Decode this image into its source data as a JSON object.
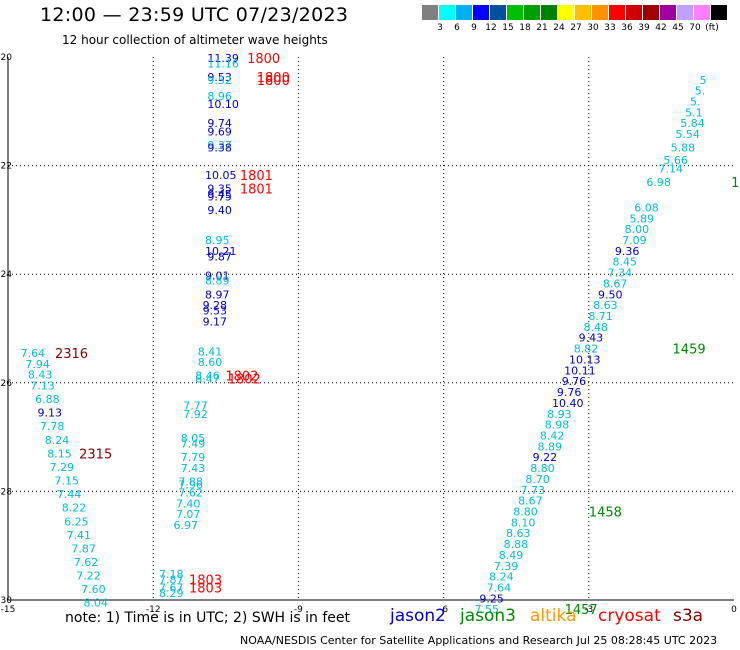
{
  "header": {
    "title": "12:00 — 23:59 UTC 07/23/2023",
    "subtitle": "12 hour collection of altimeter wave heights"
  },
  "legend": {
    "colors": [
      "#808080",
      "#00ffff",
      "#00b0f0",
      "#0000ff",
      "#0050a0",
      "#00c000",
      "#00a000",
      "#008000",
      "#ffff00",
      "#ffc000",
      "#ff9000",
      "#ff0000",
      "#d00000",
      "#a00000",
      "#a000a0",
      "#c0a0ff",
      "#ff80ff",
      "#000000"
    ],
    "labels": [
      "3",
      "6",
      "9",
      "12",
      "15",
      "18",
      "21",
      "24",
      "27",
      "30",
      "33",
      "36",
      "39",
      "42",
      "45",
      "70",
      "(ft)"
    ]
  },
  "axes": {
    "lon_ticks": [
      "-15",
      "-12",
      "-9",
      "-6",
      "-3",
      "0"
    ],
    "lat_ticks": [
      "-20",
      "-22",
      "-24",
      "-26",
      "-28",
      "-30"
    ]
  },
  "footer": {
    "note": "note:  1) Time is in UTC;  2) SWH is in feet",
    "satellites": [
      {
        "name": "jason2",
        "color": "#0000cc"
      },
      {
        "name": "jason3",
        "color": "#008800"
      },
      {
        "name": "altika",
        "color": "#ff9900"
      },
      {
        "name": "cryosat",
        "color": "#ff0000"
      },
      {
        "name": "s3a",
        "color": "#880000"
      }
    ],
    "credit": "NOAA/NESDIS Center for Satellite Applications and Research   Jul 25 08:28:45 UTC 2023"
  },
  "chart_data": {
    "type": "scatter",
    "x_range": [
      -15,
      0
    ],
    "y_range": [
      -30,
      -20
    ],
    "grid": true,
    "points": [
      {
        "x": -10.88,
        "y": -20.02,
        "v": "11.39",
        "c": "#0000cc"
      },
      {
        "x": -10.88,
        "y": -20.12,
        "v": "11.16",
        "c": "#00bbdd"
      },
      {
        "x": -10.88,
        "y": -20.37,
        "v": "9.53",
        "c": "#0000cc"
      },
      {
        "x": -10.88,
        "y": -20.42,
        "v": "9.52",
        "c": "#00bbdd"
      },
      {
        "x": -10.88,
        "y": -20.72,
        "v": "8.96",
        "c": "#00bbdd"
      },
      {
        "x": -10.88,
        "y": -20.87,
        "v": "10.10",
        "c": "#0000cc"
      },
      {
        "x": -10.88,
        "y": -21.22,
        "v": "9.74",
        "c": "#0000cc"
      },
      {
        "x": -10.88,
        "y": -21.37,
        "v": "9.69",
        "c": "#0000cc"
      },
      {
        "x": -10.88,
        "y": -21.62,
        "v": "9.37",
        "c": "#00bbdd"
      },
      {
        "x": -10.88,
        "y": -21.67,
        "v": "9.38",
        "c": "#0000cc"
      },
      {
        "x": -10.93,
        "y": -22.17,
        "v": "10.05",
        "c": "#0000cc"
      },
      {
        "x": -10.88,
        "y": -22.42,
        "v": "9.35",
        "c": "#0000cc"
      },
      {
        "x": -10.88,
        "y": -22.52,
        "v": "9.45",
        "c": "#0000cc"
      },
      {
        "x": -10.88,
        "y": -22.57,
        "v": "9.75",
        "c": "#0000cc"
      },
      {
        "x": -10.88,
        "y": -22.82,
        "v": "9.40",
        "c": "#0000cc"
      },
      {
        "x": -10.93,
        "y": -23.37,
        "v": "8.95",
        "c": "#00bbdd"
      },
      {
        "x": -10.93,
        "y": -23.57,
        "v": "10.21",
        "c": "#0000cc"
      },
      {
        "x": -10.88,
        "y": -23.67,
        "v": "9.87",
        "c": "#0000cc"
      },
      {
        "x": -10.93,
        "y": -24.02,
        "v": "9.01",
        "c": "#0000cc"
      },
      {
        "x": -10.93,
        "y": -24.12,
        "v": "8.89",
        "c": "#00bbdd"
      },
      {
        "x": -10.93,
        "y": -24.37,
        "v": "8.97",
        "c": "#0000cc"
      },
      {
        "x": -10.98,
        "y": -24.57,
        "v": "9.28",
        "c": "#0000cc"
      },
      {
        "x": -10.98,
        "y": -24.67,
        "v": "9.53",
        "c": "#0000cc"
      },
      {
        "x": -10.98,
        "y": -24.87,
        "v": "9.17",
        "c": "#0000cc"
      },
      {
        "x": -11.08,
        "y": -25.42,
        "v": "8.41",
        "c": "#00bbdd"
      },
      {
        "x": -11.08,
        "y": -25.62,
        "v": "8.60",
        "c": "#00bbdd"
      },
      {
        "x": -11.13,
        "y": -25.87,
        "v": "8.46",
        "c": "#00bbdd"
      },
      {
        "x": -11.13,
        "y": -25.92,
        "v": "8.47",
        "c": "#00bbdd"
      },
      {
        "x": -11.38,
        "y": -26.42,
        "v": "7.77",
        "c": "#00bbdd"
      },
      {
        "x": -11.38,
        "y": -26.57,
        "v": "7.92",
        "c": "#00bbdd"
      },
      {
        "x": -11.43,
        "y": -27.02,
        "v": "8.05",
        "c": "#00bbdd"
      },
      {
        "x": -11.43,
        "y": -27.12,
        "v": "7.49",
        "c": "#00bbdd"
      },
      {
        "x": -11.43,
        "y": -27.37,
        "v": "7.79",
        "c": "#00bbdd"
      },
      {
        "x": -11.43,
        "y": -27.57,
        "v": "7.43",
        "c": "#00bbdd"
      },
      {
        "x": -11.48,
        "y": -27.82,
        "v": "7.88",
        "c": "#00bbdd"
      },
      {
        "x": -11.48,
        "y": -27.87,
        "v": "7.96",
        "c": "#00bbdd"
      },
      {
        "x": -11.48,
        "y": -28.02,
        "v": "7.62",
        "c": "#00bbdd"
      },
      {
        "x": -11.53,
        "y": -28.22,
        "v": "7.40",
        "c": "#00bbdd"
      },
      {
        "x": -11.53,
        "y": -28.42,
        "v": "7.07",
        "c": "#00bbdd"
      },
      {
        "x": -11.58,
        "y": -28.62,
        "v": "6.97",
        "c": "#00bbdd"
      },
      {
        "x": -11.88,
        "y": -29.52,
        "v": "7.18",
        "c": "#00bbdd"
      },
      {
        "x": -11.88,
        "y": -29.62,
        "v": "7.87",
        "c": "#00bbdd"
      },
      {
        "x": -11.88,
        "y": -29.77,
        "v": "7.67",
        "c": "#00bbdd"
      },
      {
        "x": -11.88,
        "y": -29.87,
        "v": "8.29",
        "c": "#00bbdd"
      },
      {
        "x": -14.74,
        "y": -25.45,
        "v": "7.64",
        "c": "#00bbdd"
      },
      {
        "x": -14.64,
        "y": -25.65,
        "v": "7.94",
        "c": "#00bbdd"
      },
      {
        "x": -14.59,
        "y": -25.85,
        "v": "8.43",
        "c": "#00bbdd"
      },
      {
        "x": -14.54,
        "y": -26.05,
        "v": "7.13",
        "c": "#00bbdd"
      },
      {
        "x": -14.44,
        "y": -26.3,
        "v": "6.88",
        "c": "#00bbdd"
      },
      {
        "x": -14.39,
        "y": -26.55,
        "v": "9.13",
        "c": "#0000cc"
      },
      {
        "x": -14.34,
        "y": -26.8,
        "v": "7.78",
        "c": "#00bbdd"
      },
      {
        "x": -14.24,
        "y": -27.05,
        "v": "8.24",
        "c": "#00bbdd"
      },
      {
        "x": -14.19,
        "y": -27.3,
        "v": "8.15",
        "c": "#00bbdd"
      },
      {
        "x": -14.14,
        "y": -27.55,
        "v": "7.29",
        "c": "#00bbdd"
      },
      {
        "x": -14.04,
        "y": -27.8,
        "v": "7.15",
        "c": "#00bbdd"
      },
      {
        "x": -13.99,
        "y": -28.05,
        "v": "7.44",
        "c": "#00bbdd"
      },
      {
        "x": -13.89,
        "y": -28.3,
        "v": "8.22",
        "c": "#00bbdd"
      },
      {
        "x": -13.84,
        "y": -28.55,
        "v": "6.25",
        "c": "#00bbdd"
      },
      {
        "x": -13.79,
        "y": -28.8,
        "v": "7.41",
        "c": "#00bbdd"
      },
      {
        "x": -13.69,
        "y": -29.05,
        "v": "7.87",
        "c": "#00bbdd"
      },
      {
        "x": -13.64,
        "y": -29.3,
        "v": "7.62",
        "c": "#00bbdd"
      },
      {
        "x": -13.59,
        "y": -29.55,
        "v": "7.22",
        "c": "#00bbdd"
      },
      {
        "x": -13.49,
        "y": -29.8,
        "v": "7.60",
        "c": "#00bbdd"
      },
      {
        "x": -13.44,
        "y": -30.05,
        "v": "8.04",
        "c": "#00bbdd"
      },
      {
        "x": -1.81,
        "y": -22.3,
        "v": "6.98",
        "c": "#00bbdd"
      },
      {
        "x": -1.56,
        "y": -22.05,
        "v": "7.14",
        "c": "#00bbdd"
      },
      {
        "x": -1.46,
        "y": -21.9,
        "v": "5.66",
        "c": "#00bbdd"
      },
      {
        "x": -1.31,
        "y": -21.67,
        "v": "5.88",
        "c": "#00bbdd"
      },
      {
        "x": -1.21,
        "y": -21.42,
        "v": "5.54",
        "c": "#00bbdd"
      },
      {
        "x": -1.11,
        "y": -21.22,
        "v": "5.84",
        "c": "#00bbdd"
      },
      {
        "x": -1.01,
        "y": -21.02,
        "v": "5.1",
        "c": "#00bbdd"
      },
      {
        "x": -0.91,
        "y": -20.82,
        "v": "5.",
        "c": "#00bbdd"
      },
      {
        "x": -0.81,
        "y": -20.62,
        "v": "5.",
        "c": "#00bbdd"
      },
      {
        "x": -0.71,
        "y": -20.42,
        "v": "5",
        "c": "#00bbdd"
      },
      {
        "x": -2.06,
        "y": -22.77,
        "v": "6.08",
        "c": "#00bbdd"
      },
      {
        "x": -2.16,
        "y": -22.97,
        "v": "5.89",
        "c": "#00bbdd"
      },
      {
        "x": -2.26,
        "y": -23.17,
        "v": "8.00",
        "c": "#00bbdd"
      },
      {
        "x": -2.31,
        "y": -23.37,
        "v": "7.09",
        "c": "#00bbdd"
      },
      {
        "x": -2.46,
        "y": -23.57,
        "v": "9.36",
        "c": "#0000cc"
      },
      {
        "x": -2.51,
        "y": -23.77,
        "v": "8.45",
        "c": "#00bbdd"
      },
      {
        "x": -2.61,
        "y": -23.97,
        "v": "7.34",
        "c": "#00bbdd"
      },
      {
        "x": -2.71,
        "y": -24.17,
        "v": "8.67",
        "c": "#00bbdd"
      },
      {
        "x": -2.81,
        "y": -24.37,
        "v": "9.50",
        "c": "#0000cc"
      },
      {
        "x": -2.91,
        "y": -24.57,
        "v": "8.63",
        "c": "#00bbdd"
      },
      {
        "x": -3.01,
        "y": -24.77,
        "v": "8.71",
        "c": "#00bbdd"
      },
      {
        "x": -3.11,
        "y": -24.97,
        "v": "8.48",
        "c": "#00bbdd"
      },
      {
        "x": -3.21,
        "y": -25.17,
        "v": "9.43",
        "c": "#0000cc"
      },
      {
        "x": -3.31,
        "y": -25.37,
        "v": "8.82",
        "c": "#00bbdd"
      },
      {
        "x": -3.41,
        "y": -25.57,
        "v": "10.13",
        "c": "#0000cc"
      },
      {
        "x": -3.51,
        "y": -25.77,
        "v": "10.11",
        "c": "#0000cc"
      },
      {
        "x": -3.56,
        "y": -25.97,
        "v": "9.76",
        "c": "#0000cc"
      },
      {
        "x": -3.66,
        "y": -26.17,
        "v": "9.76",
        "c": "#0000cc"
      },
      {
        "x": -3.76,
        "y": -26.37,
        "v": "10.40",
        "c": "#0000cc"
      },
      {
        "x": -3.86,
        "y": -26.57,
        "v": "8.93",
        "c": "#00bbdd"
      },
      {
        "x": -3.91,
        "y": -26.77,
        "v": "8.98",
        "c": "#00bbdd"
      },
      {
        "x": -4.01,
        "y": -26.97,
        "v": "8.42",
        "c": "#00bbdd"
      },
      {
        "x": -4.06,
        "y": -27.17,
        "v": "8.89",
        "c": "#00bbdd"
      },
      {
        "x": -4.16,
        "y": -27.37,
        "v": "9.22",
        "c": "#0000cc"
      },
      {
        "x": -4.21,
        "y": -27.57,
        "v": "8.80",
        "c": "#00bbdd"
      },
      {
        "x": -4.31,
        "y": -27.77,
        "v": "8.70",
        "c": "#00bbdd"
      },
      {
        "x": -4.41,
        "y": -27.97,
        "v": "7.73",
        "c": "#00bbdd"
      },
      {
        "x": -4.46,
        "y": -28.17,
        "v": "8.67",
        "c": "#00bbdd"
      },
      {
        "x": -4.56,
        "y": -28.37,
        "v": "8.80",
        "c": "#00bbdd"
      },
      {
        "x": -4.61,
        "y": -28.57,
        "v": "8.10",
        "c": "#00bbdd"
      },
      {
        "x": -4.71,
        "y": -28.77,
        "v": "8.63",
        "c": "#00bbdd"
      },
      {
        "x": -4.76,
        "y": -28.97,
        "v": "8.88",
        "c": "#00bbdd"
      },
      {
        "x": -4.86,
        "y": -29.17,
        "v": "8.49",
        "c": "#00bbdd"
      },
      {
        "x": -4.96,
        "y": -29.37,
        "v": "7.39",
        "c": "#00bbdd"
      },
      {
        "x": -5.06,
        "y": -29.57,
        "v": "8.24",
        "c": "#00bbdd"
      },
      {
        "x": -5.11,
        "y": -29.77,
        "v": "7.64",
        "c": "#00bbdd"
      },
      {
        "x": -5.26,
        "y": -29.97,
        "v": "9.25",
        "c": "#0000cc"
      },
      {
        "x": -5.36,
        "y": -30.17,
        "v": "7.55",
        "c": "#00bbdd"
      }
    ],
    "passes": [
      {
        "x": -10.06,
        "y": -20.02,
        "t": "1800",
        "c": "#ff0000"
      },
      {
        "x": -9.86,
        "y": -20.37,
        "t": "1800",
        "c": "#ff0000"
      },
      {
        "x": -9.86,
        "y": -20.42,
        "t": "1800",
        "c": "#ff0000"
      },
      {
        "x": -10.21,
        "y": -22.17,
        "t": "1801",
        "c": "#ff0000"
      },
      {
        "x": -10.21,
        "y": -22.42,
        "t": "1801",
        "c": "#ff0000"
      },
      {
        "x": -10.51,
        "y": -25.87,
        "t": "1802",
        "c": "#ff0000"
      },
      {
        "x": -10.46,
        "y": -25.92,
        "t": "1802",
        "c": "#ff0000"
      },
      {
        "x": -11.26,
        "y": -29.62,
        "t": "1803",
        "c": "#ff0000"
      },
      {
        "x": -11.26,
        "y": -29.77,
        "t": "1803",
        "c": "#ff0000"
      },
      {
        "x": -14.03,
        "y": -25.45,
        "t": "2316",
        "c": "#880000"
      },
      {
        "x": -13.53,
        "y": -27.3,
        "t": "2315",
        "c": "#880000"
      },
      {
        "x": -1.27,
        "y": -25.37,
        "t": "1459",
        "c": "#008800"
      },
      {
        "x": -3.0,
        "y": -28.37,
        "t": "1458",
        "c": "#008800"
      },
      {
        "x": -3.5,
        "y": -30.17,
        "t": "1457",
        "c": "#008800"
      },
      {
        "x": -0.06,
        "y": -22.3,
        "t": "1",
        "c": "#008800"
      }
    ]
  }
}
